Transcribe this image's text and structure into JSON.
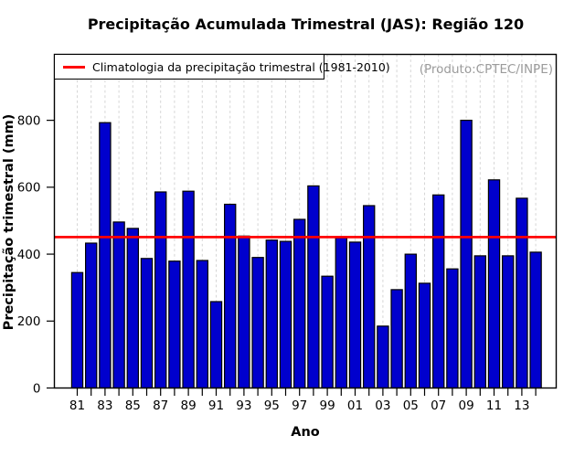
{
  "header": {
    "title": "Precipitação Acumulada Trimestral (JAS): Região 120"
  },
  "annotations": {
    "produto": "(Produto:CPTEC/INPE)",
    "produto_color": "#9b9b9b"
  },
  "legend": {
    "label": "Climatologia da precipitação trimestral (1981-2010)",
    "line_color": "#ff0000",
    "position": "top-left"
  },
  "axes": {
    "x_label": "Ano",
    "y_label": "Precipitação trimestral (mm)",
    "y_tick_labels": [
      "0",
      "200",
      "400",
      "600",
      "800"
    ],
    "x_tick_labels": [
      "81",
      "83",
      "85",
      "87",
      "89",
      "91",
      "93",
      "95",
      "97",
      "99",
      "01",
      "03",
      "05",
      "07",
      "09",
      "11",
      "13"
    ]
  },
  "chart_data": {
    "type": "bar",
    "title": "Precipitação Acumulada Trimestral (JAS): Região 120",
    "xlabel": "Ano",
    "ylabel": "Precipitação trimestral (mm)",
    "categories": [
      1981,
      1982,
      1983,
      1984,
      1985,
      1986,
      1987,
      1988,
      1989,
      1990,
      1991,
      1992,
      1993,
      1994,
      1995,
      1996,
      1997,
      1998,
      1999,
      2000,
      2001,
      2002,
      2003,
      2004,
      2005,
      2006,
      2007,
      2008,
      2009,
      2010,
      2011,
      2012,
      2013,
      2014
    ],
    "values": [
      345,
      433,
      793,
      496,
      477,
      387,
      586,
      379,
      588,
      381,
      258,
      549,
      454,
      390,
      442,
      438,
      504,
      604,
      334,
      449,
      436,
      545,
      185,
      294,
      400,
      313,
      577,
      356,
      800,
      395,
      622,
      395,
      567,
      406
    ],
    "climatology_line_value": 451,
    "y_ticks": [
      0,
      200,
      400,
      600,
      800
    ],
    "ylim": [
      0,
      997
    ],
    "grid": "vertical-dashed",
    "legend_position": "top-left",
    "colors": {
      "bar_fill": "#0000cd",
      "bar_border": "#000000",
      "climatology_line": "#ff0000",
      "grid_line": "#d6d6d6",
      "axis": "#000000",
      "produto_text": "#9b9b9b"
    }
  }
}
